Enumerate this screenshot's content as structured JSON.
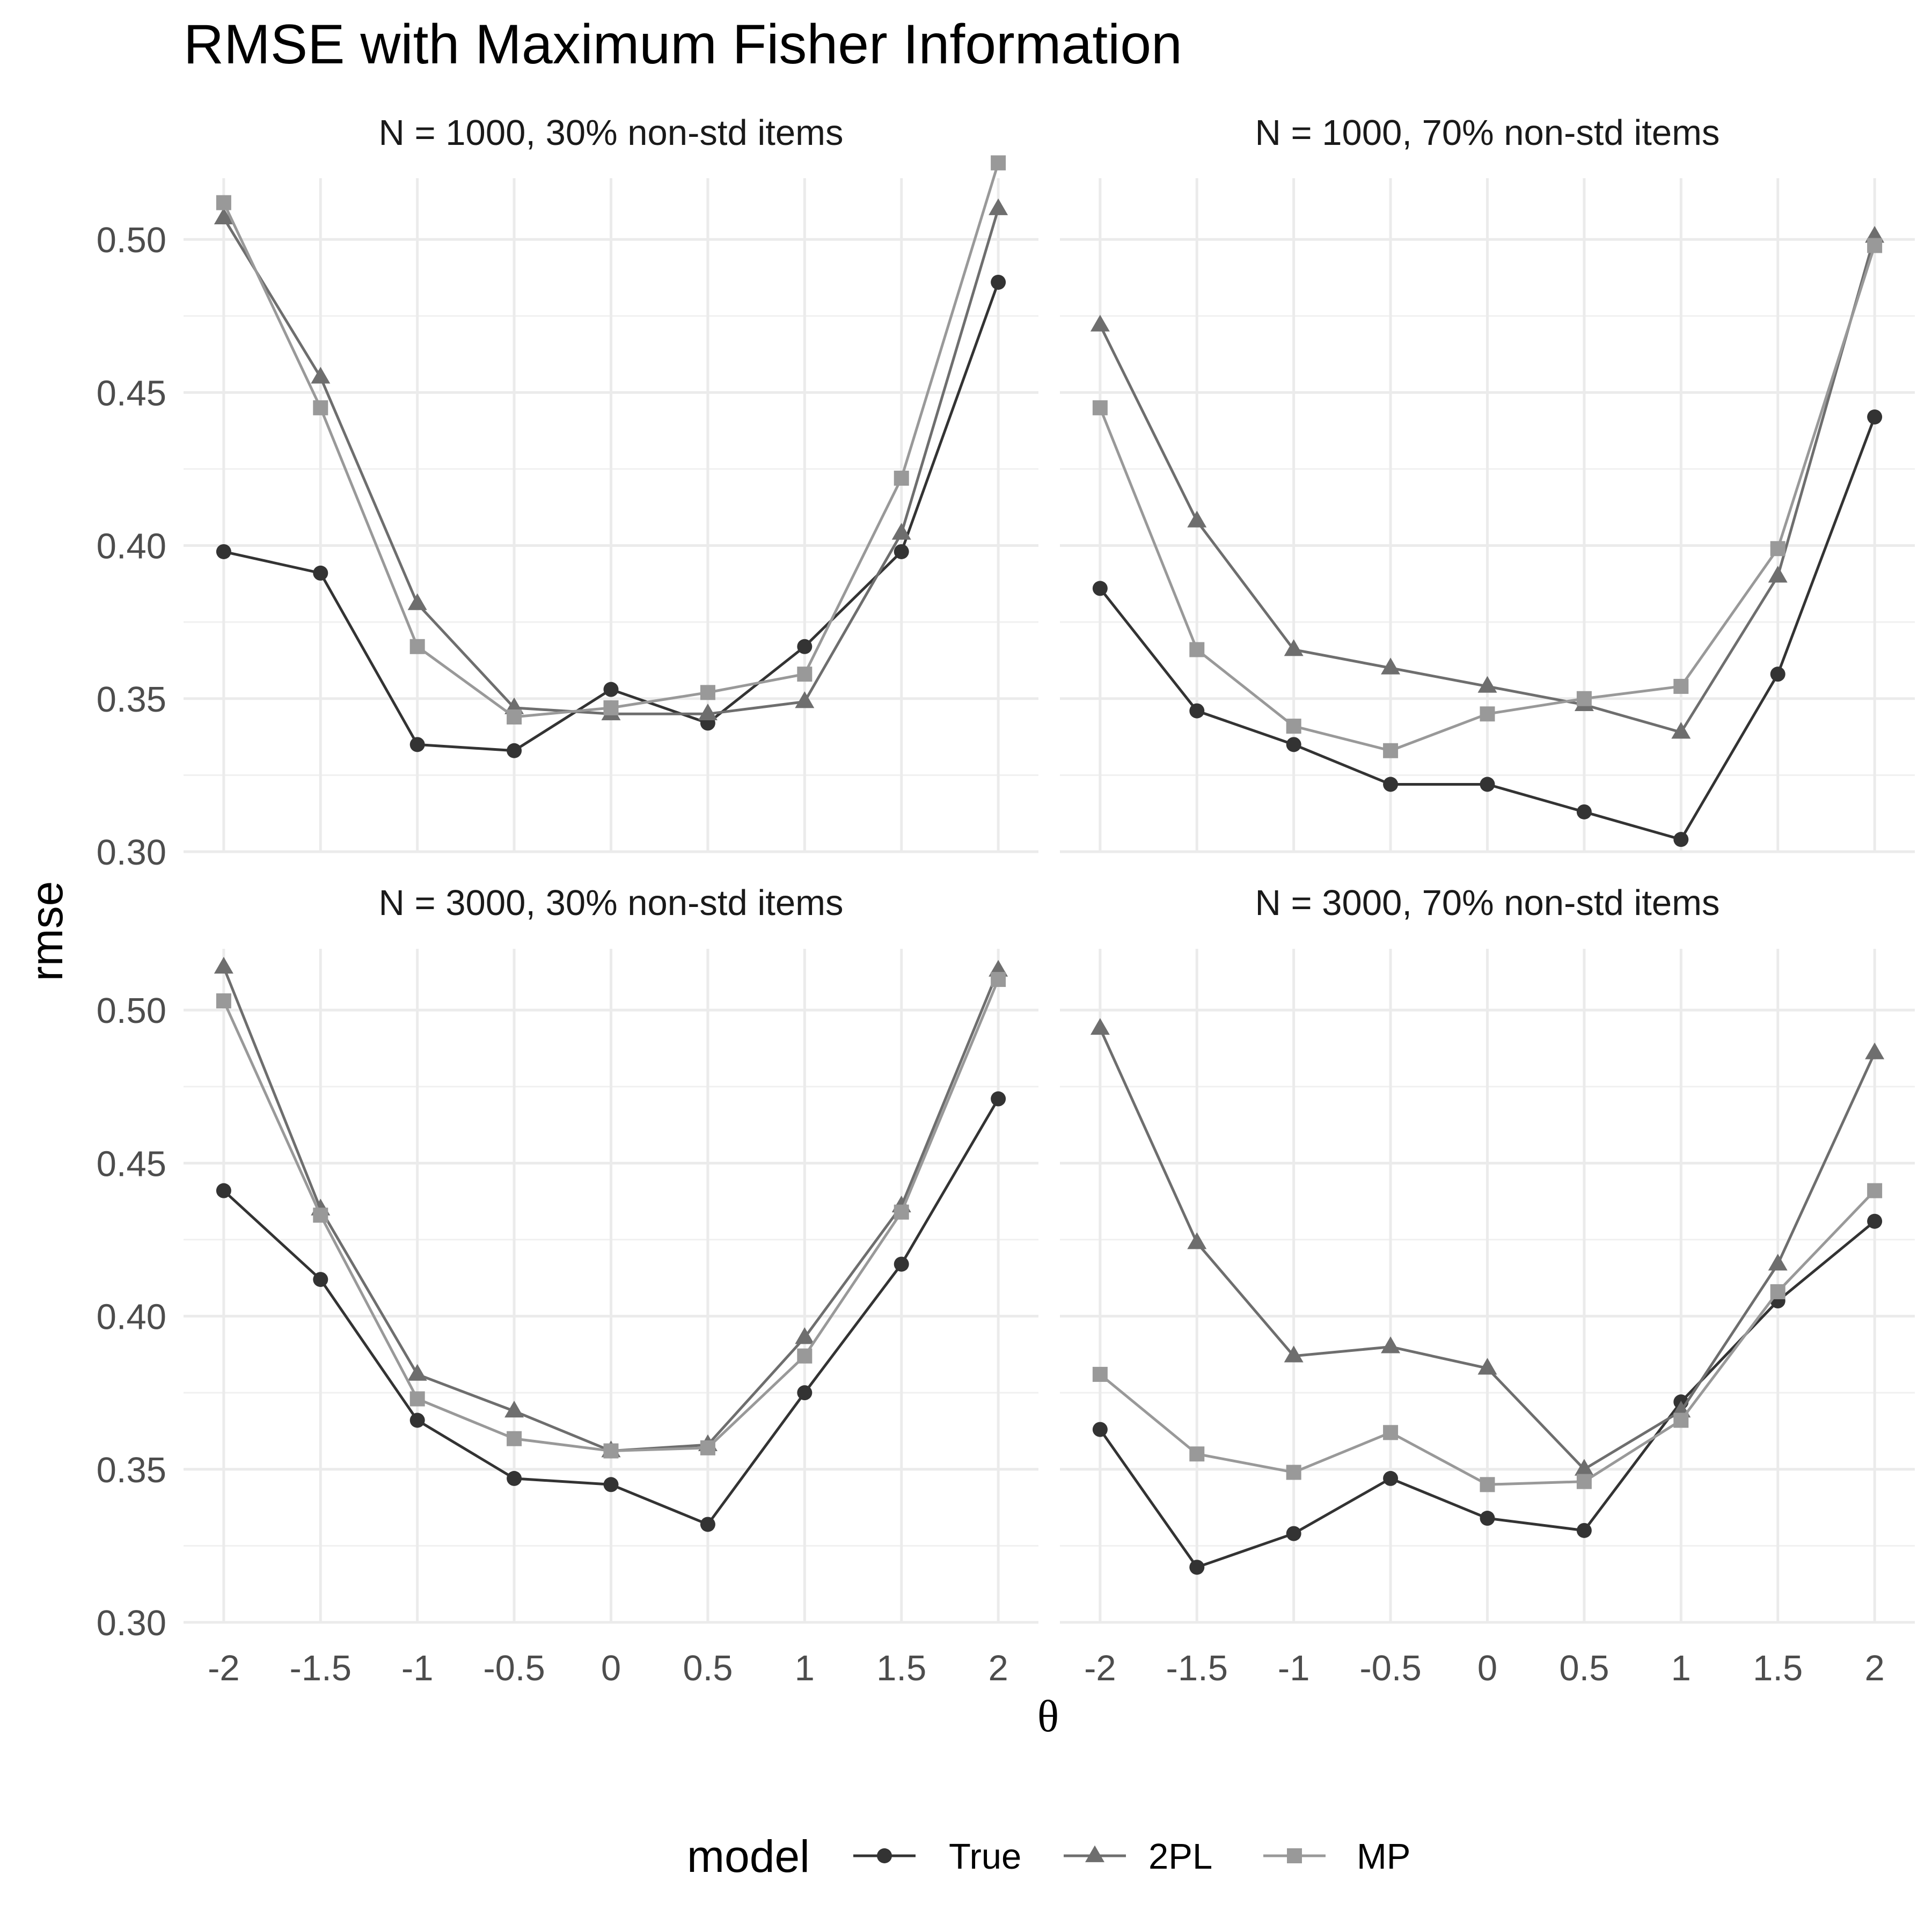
{
  "chart_data": {
    "type": "line",
    "title": "RMSE with Maximum Fisher Information",
    "xlabel": "θ",
    "ylabel": "rmse",
    "x": [
      -2,
      -1.5,
      -1,
      -0.5,
      0,
      0.5,
      1,
      1.5,
      2
    ],
    "x_tick_labels": [
      "-2",
      "-1.5",
      "-1",
      "-0.5",
      "0",
      "0.5",
      "1",
      "1.5",
      "2"
    ],
    "ylim": [
      0.3,
      0.52
    ],
    "y_ticks": [
      0.3,
      0.35,
      0.4,
      0.45,
      0.5
    ],
    "y_tick_labels": [
      "0.30",
      "0.35",
      "0.40",
      "0.45",
      "0.50"
    ],
    "grid": true,
    "legend": {
      "title": "model",
      "position": "bottom",
      "entries": [
        {
          "name": "True",
          "color": "#333333",
          "shape": "circle"
        },
        {
          "name": "2PL",
          "color": "#6e6e6e",
          "shape": "triangle"
        },
        {
          "name": "MP",
          "color": "#999999",
          "shape": "square"
        }
      ]
    },
    "panels": [
      {
        "label": "N = 1000, 30% non-std items",
        "series": [
          {
            "name": "True",
            "values": [
              0.398,
              0.391,
              0.335,
              0.333,
              0.353,
              0.342,
              0.367,
              0.398,
              0.486
            ]
          },
          {
            "name": "2PL",
            "values": [
              0.507,
              0.455,
              0.381,
              0.347,
              0.345,
              0.345,
              0.349,
              0.404,
              0.51
            ]
          },
          {
            "name": "MP",
            "values": [
              0.512,
              0.445,
              0.367,
              0.344,
              0.347,
              0.352,
              0.358,
              0.422,
              0.525
            ]
          }
        ]
      },
      {
        "label": "N = 1000, 70% non-std items",
        "series": [
          {
            "name": "True",
            "values": [
              0.386,
              0.346,
              0.335,
              0.322,
              0.322,
              0.313,
              0.304,
              0.358,
              0.442
            ]
          },
          {
            "name": "2PL",
            "values": [
              0.472,
              0.408,
              0.366,
              0.36,
              0.354,
              0.348,
              0.339,
              0.39,
              0.501
            ]
          },
          {
            "name": "MP",
            "values": [
              0.445,
              0.366,
              0.341,
              0.333,
              0.345,
              0.35,
              0.354,
              0.399,
              0.498
            ]
          }
        ]
      },
      {
        "label": "N = 3000, 30% non-std items",
        "series": [
          {
            "name": "True",
            "values": [
              0.441,
              0.412,
              0.366,
              0.347,
              0.345,
              0.332,
              0.375,
              0.417,
              0.471
            ]
          },
          {
            "name": "2PL",
            "values": [
              0.514,
              0.435,
              0.381,
              0.369,
              0.356,
              0.358,
              0.393,
              0.436,
              0.513
            ]
          },
          {
            "name": "MP",
            "values": [
              0.503,
              0.433,
              0.373,
              0.36,
              0.356,
              0.357,
              0.387,
              0.434,
              0.51
            ]
          }
        ]
      },
      {
        "label": "N = 3000, 70% non-std items",
        "series": [
          {
            "name": "True",
            "values": [
              0.363,
              0.318,
              0.329,
              0.347,
              0.334,
              0.33,
              0.372,
              0.405,
              0.431
            ]
          },
          {
            "name": "2PL",
            "values": [
              0.494,
              0.424,
              0.387,
              0.39,
              0.383,
              0.35,
              0.369,
              0.417,
              0.486
            ]
          },
          {
            "name": "MP",
            "values": [
              0.381,
              0.355,
              0.349,
              0.362,
              0.345,
              0.346,
              0.366,
              0.408,
              0.441
            ]
          }
        ]
      }
    ]
  }
}
